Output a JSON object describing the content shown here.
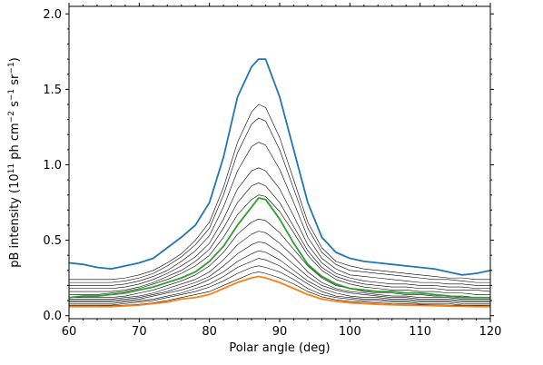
{
  "chart_data": {
    "type": "line",
    "title": "",
    "xlabel": "Polar angle (deg)",
    "ylabel_parts": [
      "pB intensity (10",
      "11",
      " ph cm",
      "−2",
      " s",
      "−1",
      " sr",
      "−1",
      ")"
    ],
    "xlim": [
      60,
      120
    ],
    "ylim": [
      -0.02,
      2.05
    ],
    "xticks": [
      60,
      70,
      80,
      90,
      100,
      110,
      120
    ],
    "xtick_labels": [
      "60",
      "70",
      "80",
      "90",
      "100",
      "110",
      "120"
    ],
    "yticks": [
      0.0,
      0.5,
      1.0,
      1.5,
      2.0
    ],
    "ytick_labels": [
      "0.0",
      "0.5",
      "1.0",
      "1.5",
      "2.0"
    ],
    "x": [
      60,
      62,
      64,
      66,
      68,
      70,
      72,
      74,
      76,
      78,
      80,
      82,
      84,
      86,
      87,
      88,
      90,
      92,
      94,
      96,
      98,
      100,
      102,
      104,
      106,
      108,
      110,
      112,
      114,
      116,
      118,
      120
    ],
    "colors": {
      "top": "#1f77b4",
      "middle": "#2ca02c",
      "bottom": "#ff7f0e",
      "intermediate": "#000000"
    },
    "series": [
      {
        "values": [
          0.35,
          0.34,
          0.32,
          0.31,
          0.33,
          0.35,
          0.38,
          0.45,
          0.52,
          0.6,
          0.75,
          1.05,
          1.45,
          1.65,
          1.7,
          1.7,
          1.45,
          1.1,
          0.75,
          0.52,
          0.42,
          0.38,
          0.36,
          0.35,
          0.34,
          0.33,
          0.32,
          0.31,
          0.29,
          0.27,
          0.28,
          0.3
        ]
      },
      {
        "values": [
          0.24,
          0.24,
          0.24,
          0.24,
          0.25,
          0.27,
          0.3,
          0.35,
          0.41,
          0.5,
          0.62,
          0.85,
          1.15,
          1.35,
          1.4,
          1.38,
          1.18,
          0.9,
          0.62,
          0.45,
          0.36,
          0.33,
          0.31,
          0.3,
          0.29,
          0.28,
          0.27,
          0.26,
          0.25,
          0.25,
          0.24,
          0.24
        ]
      },
      {
        "values": [
          0.22,
          0.22,
          0.22,
          0.22,
          0.23,
          0.25,
          0.28,
          0.33,
          0.39,
          0.47,
          0.58,
          0.8,
          1.08,
          1.27,
          1.31,
          1.29,
          1.1,
          0.84,
          0.58,
          0.42,
          0.34,
          0.3,
          0.29,
          0.28,
          0.27,
          0.26,
          0.25,
          0.24,
          0.24,
          0.23,
          0.22,
          0.22
        ]
      },
      {
        "values": [
          0.2,
          0.2,
          0.2,
          0.2,
          0.21,
          0.23,
          0.26,
          0.3,
          0.36,
          0.43,
          0.53,
          0.72,
          0.96,
          1.12,
          1.15,
          1.13,
          0.97,
          0.75,
          0.52,
          0.38,
          0.31,
          0.27,
          0.26,
          0.25,
          0.24,
          0.23,
          0.22,
          0.22,
          0.21,
          0.21,
          0.2,
          0.2
        ]
      },
      {
        "values": [
          0.18,
          0.18,
          0.18,
          0.18,
          0.19,
          0.21,
          0.24,
          0.28,
          0.33,
          0.39,
          0.48,
          0.64,
          0.84,
          0.96,
          0.98,
          0.96,
          0.84,
          0.66,
          0.47,
          0.35,
          0.28,
          0.25,
          0.23,
          0.22,
          0.21,
          0.21,
          0.2,
          0.2,
          0.19,
          0.19,
          0.18,
          0.18
        ]
      },
      {
        "values": [
          0.16,
          0.16,
          0.16,
          0.16,
          0.17,
          0.19,
          0.22,
          0.26,
          0.3,
          0.36,
          0.44,
          0.58,
          0.75,
          0.86,
          0.88,
          0.86,
          0.75,
          0.59,
          0.43,
          0.32,
          0.26,
          0.23,
          0.21,
          0.2,
          0.19,
          0.19,
          0.18,
          0.18,
          0.17,
          0.17,
          0.17,
          0.16
        ]
      },
      {
        "values": [
          0.14,
          0.14,
          0.14,
          0.15,
          0.16,
          0.18,
          0.21,
          0.24,
          0.28,
          0.33,
          0.4,
          0.52,
          0.67,
          0.77,
          0.8,
          0.79,
          0.69,
          0.55,
          0.4,
          0.3,
          0.24,
          0.21,
          0.19,
          0.18,
          0.17,
          0.17,
          0.16,
          0.16,
          0.15,
          0.15,
          0.14,
          0.14
        ]
      },
      {
        "values": [
          0.12,
          0.13,
          0.13,
          0.14,
          0.15,
          0.17,
          0.19,
          0.22,
          0.25,
          0.29,
          0.36,
          0.46,
          0.6,
          0.72,
          0.78,
          0.77,
          0.64,
          0.48,
          0.34,
          0.26,
          0.21,
          0.18,
          0.17,
          0.16,
          0.16,
          0.15,
          0.15,
          0.14,
          0.13,
          0.12,
          0.12,
          0.12
        ]
      },
      {
        "values": [
          0.12,
          0.12,
          0.12,
          0.12,
          0.13,
          0.15,
          0.17,
          0.2,
          0.23,
          0.27,
          0.33,
          0.42,
          0.54,
          0.62,
          0.64,
          0.63,
          0.55,
          0.44,
          0.33,
          0.25,
          0.2,
          0.18,
          0.16,
          0.15,
          0.15,
          0.14,
          0.14,
          0.13,
          0.13,
          0.13,
          0.12,
          0.12
        ]
      },
      {
        "values": [
          0.11,
          0.11,
          0.11,
          0.11,
          0.12,
          0.13,
          0.15,
          0.18,
          0.21,
          0.24,
          0.29,
          0.37,
          0.47,
          0.54,
          0.56,
          0.55,
          0.48,
          0.39,
          0.29,
          0.22,
          0.18,
          0.16,
          0.15,
          0.14,
          0.13,
          0.13,
          0.12,
          0.12,
          0.12,
          0.11,
          0.11,
          0.11
        ]
      },
      {
        "values": [
          0.1,
          0.1,
          0.1,
          0.1,
          0.11,
          0.12,
          0.14,
          0.16,
          0.19,
          0.22,
          0.26,
          0.33,
          0.41,
          0.47,
          0.49,
          0.48,
          0.42,
          0.34,
          0.26,
          0.2,
          0.17,
          0.15,
          0.14,
          0.13,
          0.12,
          0.12,
          0.11,
          0.11,
          0.11,
          0.1,
          0.1,
          0.1
        ]
      },
      {
        "values": [
          0.09,
          0.09,
          0.09,
          0.09,
          0.1,
          0.11,
          0.13,
          0.15,
          0.17,
          0.2,
          0.24,
          0.29,
          0.36,
          0.41,
          0.43,
          0.42,
          0.37,
          0.3,
          0.23,
          0.18,
          0.15,
          0.13,
          0.12,
          0.12,
          0.11,
          0.11,
          0.1,
          0.1,
          0.1,
          0.09,
          0.09,
          0.09
        ]
      },
      {
        "values": [
          0.08,
          0.08,
          0.08,
          0.08,
          0.09,
          0.1,
          0.11,
          0.13,
          0.15,
          0.18,
          0.21,
          0.26,
          0.32,
          0.36,
          0.38,
          0.37,
          0.33,
          0.27,
          0.21,
          0.16,
          0.13,
          0.12,
          0.11,
          0.11,
          0.1,
          0.1,
          0.09,
          0.09,
          0.09,
          0.08,
          0.08,
          0.08
        ]
      },
      {
        "values": [
          0.07,
          0.07,
          0.07,
          0.07,
          0.08,
          0.09,
          0.1,
          0.12,
          0.14,
          0.16,
          0.19,
          0.23,
          0.28,
          0.32,
          0.33,
          0.32,
          0.29,
          0.24,
          0.18,
          0.14,
          0.12,
          0.11,
          0.1,
          0.1,
          0.09,
          0.09,
          0.08,
          0.08,
          0.08,
          0.07,
          0.07,
          0.07
        ]
      },
      {
        "values": [
          0.065,
          0.065,
          0.065,
          0.066,
          0.07,
          0.075,
          0.085,
          0.1,
          0.12,
          0.14,
          0.16,
          0.2,
          0.24,
          0.28,
          0.29,
          0.28,
          0.25,
          0.21,
          0.16,
          0.125,
          0.105,
          0.095,
          0.09,
          0.085,
          0.08,
          0.078,
          0.075,
          0.072,
          0.07,
          0.068,
          0.066,
          0.065
        ]
      },
      {
        "values": [
          0.06,
          0.06,
          0.06,
          0.06,
          0.065,
          0.07,
          0.08,
          0.09,
          0.11,
          0.12,
          0.14,
          0.18,
          0.22,
          0.25,
          0.26,
          0.25,
          0.22,
          0.18,
          0.14,
          0.11,
          0.095,
          0.085,
          0.08,
          0.075,
          0.072,
          0.07,
          0.068,
          0.066,
          0.064,
          0.062,
          0.06,
          0.06
        ]
      }
    ]
  }
}
